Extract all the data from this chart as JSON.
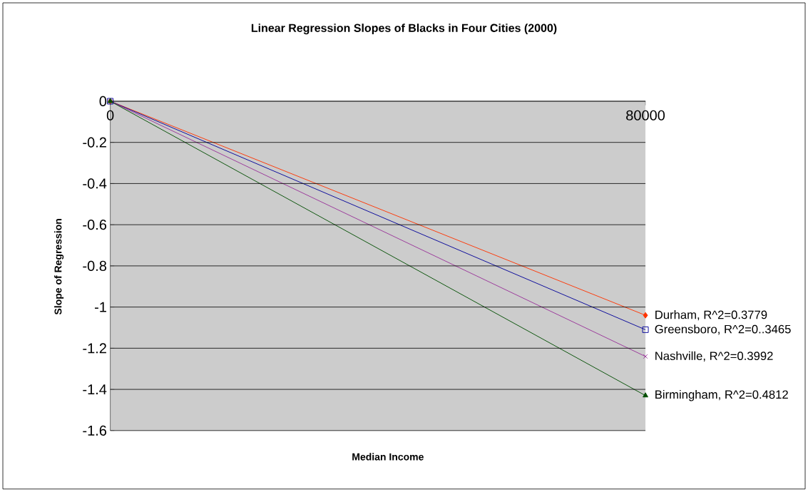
{
  "chart_data": {
    "type": "line",
    "title": "Linear Regression Slopes of Blacks in Four Cities (2000)",
    "xlabel": "Median Income",
    "ylabel": "Slope of Regression",
    "x": [
      0,
      80000
    ],
    "xlim": [
      0,
      80000
    ],
    "xticks": [
      0,
      80000
    ],
    "ylim": [
      -1.6,
      0
    ],
    "yticks": [
      -1.6,
      -1.4,
      -1.2,
      -1,
      -0.8,
      -0.6,
      -0.4,
      -0.2,
      0
    ],
    "grid": "y",
    "legend": false,
    "line_style": "solid",
    "series": [
      {
        "name": "Durham, R^2=0.3779",
        "color": "#ff3300",
        "marker": "diamond",
        "values": [
          0,
          -1.04
        ]
      },
      {
        "name": "Greensboro, R^2=0..3465",
        "color": "#000099",
        "marker": "square",
        "values": [
          0,
          -1.11
        ]
      },
      {
        "name": "Nashville, R^2=0.3992",
        "color": "#993399",
        "marker": "cross",
        "values": [
          0,
          -1.24
        ]
      },
      {
        "name": "Birmingham, R^2=0.4812",
        "color": "#004d00",
        "marker": "triangle",
        "values": [
          0,
          -1.43
        ]
      }
    ]
  }
}
